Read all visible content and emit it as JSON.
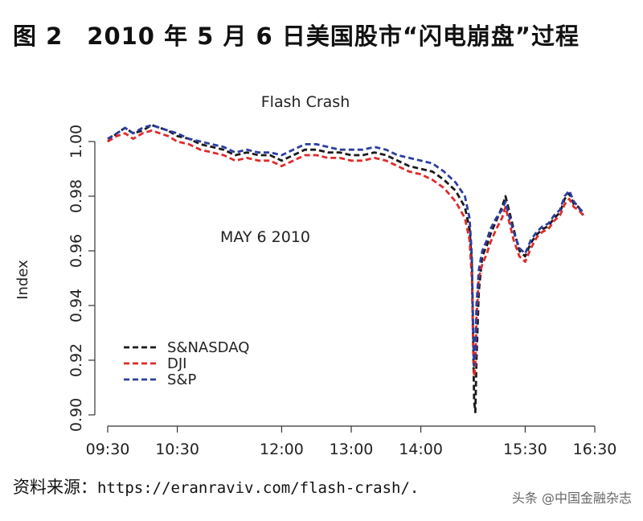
{
  "figure": {
    "title": "图 2　2010 年 5 月 6 日美国股市“闪电崩盘”过程",
    "source_label": "资料来源：",
    "source_url": "https://eranraviv.com/flash-crash/.",
    "watermark": "头条 @中国金融杂志"
  },
  "chart_data": {
    "type": "line",
    "title": "Flash Crash",
    "annotation": "MAY 6 2010",
    "xlabel": "",
    "ylabel": "Index",
    "x_ticks": [
      "09:30",
      "10:30",
      "12:00",
      "13:00",
      "14:00",
      "15:30",
      "16:30"
    ],
    "x_tick_minutes": [
      570,
      630,
      720,
      780,
      840,
      930,
      990
    ],
    "xlim": [
      "09:30",
      "16:30"
    ],
    "y_ticks": [
      0.9,
      0.92,
      0.94,
      0.96,
      0.98,
      1.0
    ],
    "ylim": [
      0.9,
      1.0
    ],
    "legend_position": "bottom-left",
    "series": [
      {
        "name": "S&NASDAQ",
        "color": "#1a1a1a",
        "style": "dashed",
        "points": [
          [
            "09:30",
            1.0
          ],
          [
            "09:38",
            1.003
          ],
          [
            "09:45",
            1.005
          ],
          [
            "09:52",
            1.003
          ],
          [
            "10:00",
            1.004
          ],
          [
            "10:08",
            1.006
          ],
          [
            "10:15",
            1.005
          ],
          [
            "10:22",
            1.004
          ],
          [
            "10:30",
            1.002
          ],
          [
            "10:40",
            1.001
          ],
          [
            "10:50",
            0.999
          ],
          [
            "11:00",
            0.998
          ],
          [
            "11:10",
            0.997
          ],
          [
            "11:20",
            0.995
          ],
          [
            "11:30",
            0.996
          ],
          [
            "11:40",
            0.995
          ],
          [
            "11:50",
            0.995
          ],
          [
            "12:00",
            0.993
          ],
          [
            "12:10",
            0.995
          ],
          [
            "12:20",
            0.997
          ],
          [
            "12:30",
            0.997
          ],
          [
            "12:40",
            0.996
          ],
          [
            "12:50",
            0.996
          ],
          [
            "13:00",
            0.995
          ],
          [
            "13:10",
            0.995
          ],
          [
            "13:20",
            0.996
          ],
          [
            "13:30",
            0.995
          ],
          [
            "13:40",
            0.993
          ],
          [
            "13:50",
            0.991
          ],
          [
            "14:00",
            0.99
          ],
          [
            "14:10",
            0.989
          ],
          [
            "14:20",
            0.986
          ],
          [
            "14:30",
            0.982
          ],
          [
            "14:38",
            0.976
          ],
          [
            "14:42",
            0.968
          ],
          [
            "14:44",
            0.955
          ],
          [
            "14:45",
            0.93
          ],
          [
            "14:46",
            0.905
          ],
          [
            "14:47",
            0.901
          ],
          [
            "14:48",
            0.92
          ],
          [
            "14:50",
            0.945
          ],
          [
            "14:53",
            0.958
          ],
          [
            "14:57",
            0.962
          ],
          [
            "15:00",
            0.966
          ],
          [
            "15:05",
            0.971
          ],
          [
            "15:10",
            0.976
          ],
          [
            "15:13",
            0.98
          ],
          [
            "15:16",
            0.975
          ],
          [
            "15:20",
            0.968
          ],
          [
            "15:25",
            0.96
          ],
          [
            "15:30",
            0.958
          ],
          [
            "15:35",
            0.963
          ],
          [
            "15:40",
            0.966
          ],
          [
            "15:45",
            0.968
          ],
          [
            "15:50",
            0.969
          ],
          [
            "15:55",
            0.972
          ],
          [
            "16:00",
            0.974
          ],
          [
            "16:04",
            0.979
          ],
          [
            "16:08",
            0.981
          ],
          [
            "16:12",
            0.977
          ],
          [
            "16:16",
            0.976
          ],
          [
            "16:20",
            0.973
          ]
        ]
      },
      {
        "name": "DJI",
        "color": "#e02a2a",
        "style": "dashed",
        "points": [
          [
            "09:30",
            1.0
          ],
          [
            "09:38",
            1.002
          ],
          [
            "09:45",
            1.003
          ],
          [
            "09:52",
            1.001
          ],
          [
            "10:00",
            1.003
          ],
          [
            "10:08",
            1.004
          ],
          [
            "10:15",
            1.003
          ],
          [
            "10:22",
            1.002
          ],
          [
            "10:30",
            1.0
          ],
          [
            "10:40",
            0.999
          ],
          [
            "10:50",
            0.997
          ],
          [
            "11:00",
            0.996
          ],
          [
            "11:10",
            0.995
          ],
          [
            "11:20",
            0.993
          ],
          [
            "11:30",
            0.994
          ],
          [
            "11:40",
            0.993
          ],
          [
            "11:50",
            0.993
          ],
          [
            "12:00",
            0.991
          ],
          [
            "12:10",
            0.993
          ],
          [
            "12:20",
            0.995
          ],
          [
            "12:30",
            0.995
          ],
          [
            "12:40",
            0.994
          ],
          [
            "12:50",
            0.994
          ],
          [
            "13:00",
            0.993
          ],
          [
            "13:10",
            0.993
          ],
          [
            "13:20",
            0.994
          ],
          [
            "13:30",
            0.993
          ],
          [
            "13:40",
            0.991
          ],
          [
            "13:50",
            0.989
          ],
          [
            "14:00",
            0.988
          ],
          [
            "14:10",
            0.986
          ],
          [
            "14:20",
            0.983
          ],
          [
            "14:30",
            0.978
          ],
          [
            "14:38",
            0.972
          ],
          [
            "14:42",
            0.964
          ],
          [
            "14:44",
            0.95
          ],
          [
            "14:45",
            0.928
          ],
          [
            "14:46",
            0.914
          ],
          [
            "14:47",
            0.918
          ],
          [
            "14:48",
            0.935
          ],
          [
            "14:50",
            0.95
          ],
          [
            "14:53",
            0.955
          ],
          [
            "14:57",
            0.959
          ],
          [
            "15:00",
            0.963
          ],
          [
            "15:05",
            0.968
          ],
          [
            "15:10",
            0.972
          ],
          [
            "15:13",
            0.976
          ],
          [
            "15:16",
            0.971
          ],
          [
            "15:20",
            0.964
          ],
          [
            "15:25",
            0.958
          ],
          [
            "15:30",
            0.956
          ],
          [
            "15:35",
            0.961
          ],
          [
            "15:40",
            0.965
          ],
          [
            "15:45",
            0.967
          ],
          [
            "15:50",
            0.968
          ],
          [
            "15:55",
            0.971
          ],
          [
            "16:00",
            0.973
          ],
          [
            "16:04",
            0.977
          ],
          [
            "16:08",
            0.979
          ],
          [
            "16:12",
            0.976
          ],
          [
            "16:16",
            0.975
          ],
          [
            "16:20",
            0.973
          ]
        ]
      },
      {
        "name": "S&P",
        "color": "#2c3e9e",
        "style": "dashed",
        "points": [
          [
            "09:30",
            1.001
          ],
          [
            "09:38",
            1.003
          ],
          [
            "09:45",
            1.005
          ],
          [
            "09:52",
            1.003
          ],
          [
            "10:00",
            1.005
          ],
          [
            "10:08",
            1.006
          ],
          [
            "10:15",
            1.005
          ],
          [
            "10:22",
            1.004
          ],
          [
            "10:30",
            1.003
          ],
          [
            "10:40",
            1.001
          ],
          [
            "10:50",
            1.0
          ],
          [
            "11:00",
            0.999
          ],
          [
            "11:10",
            0.998
          ],
          [
            "11:20",
            0.996
          ],
          [
            "11:30",
            0.997
          ],
          [
            "11:40",
            0.996
          ],
          [
            "11:50",
            0.996
          ],
          [
            "12:00",
            0.995
          ],
          [
            "12:10",
            0.997
          ],
          [
            "12:20",
            0.999
          ],
          [
            "12:30",
            0.999
          ],
          [
            "12:40",
            0.998
          ],
          [
            "12:50",
            0.997
          ],
          [
            "13:00",
            0.997
          ],
          [
            "13:10",
            0.997
          ],
          [
            "13:20",
            0.998
          ],
          [
            "13:30",
            0.997
          ],
          [
            "13:40",
            0.995
          ],
          [
            "13:50",
            0.994
          ],
          [
            "14:00",
            0.993
          ],
          [
            "14:10",
            0.992
          ],
          [
            "14:20",
            0.989
          ],
          [
            "14:30",
            0.985
          ],
          [
            "14:38",
            0.98
          ],
          [
            "14:42",
            0.972
          ],
          [
            "14:44",
            0.958
          ],
          [
            "14:45",
            0.935
          ],
          [
            "14:46",
            0.918
          ],
          [
            "14:47",
            0.922
          ],
          [
            "14:48",
            0.94
          ],
          [
            "14:50",
            0.953
          ],
          [
            "14:53",
            0.96
          ],
          [
            "14:57",
            0.964
          ],
          [
            "15:00",
            0.968
          ],
          [
            "15:05",
            0.972
          ],
          [
            "15:10",
            0.975
          ],
          [
            "15:13",
            0.978
          ],
          [
            "15:16",
            0.973
          ],
          [
            "15:20",
            0.967
          ],
          [
            "15:25",
            0.961
          ],
          [
            "15:30",
            0.959
          ],
          [
            "15:35",
            0.964
          ],
          [
            "15:40",
            0.967
          ],
          [
            "15:45",
            0.969
          ],
          [
            "15:50",
            0.97
          ],
          [
            "15:55",
            0.973
          ],
          [
            "16:00",
            0.975
          ],
          [
            "16:04",
            0.98
          ],
          [
            "16:08",
            0.982
          ],
          [
            "16:12",
            0.978
          ],
          [
            "16:16",
            0.976
          ],
          [
            "16:20",
            0.974
          ]
        ]
      }
    ]
  }
}
